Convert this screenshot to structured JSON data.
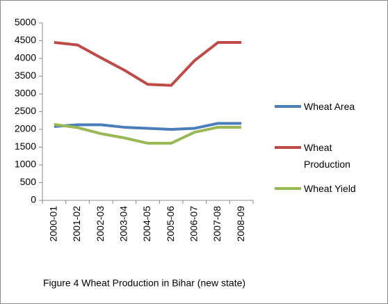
{
  "chart_data": {
    "type": "line",
    "caption": "Figure 4  Wheat Production in Bihar (new state)",
    "categories": [
      "2000-01",
      "2001-02",
      "2002-03",
      "2003-04",
      "2004-05",
      "2005-06",
      "2006-07",
      "2007-08",
      "2008-09"
    ],
    "series": [
      {
        "name": "Wheat Area",
        "color": "#4a7ebb",
        "values": [
          2080,
          2130,
          2130,
          2060,
          2030,
          2000,
          2030,
          2170,
          2170
        ]
      },
      {
        "name": "Wheat Production",
        "color": "#be4b48",
        "values": [
          4450,
          4380,
          4020,
          3670,
          3270,
          3240,
          3940,
          4450,
          4450
        ]
      },
      {
        "name": "Wheat Yield",
        "color": "#98b954",
        "values": [
          2140,
          2050,
          1880,
          1760,
          1610,
          1610,
          1920,
          2060,
          2060
        ]
      }
    ],
    "ylim": [
      0,
      5000
    ],
    "yticks": [
      0,
      500,
      1000,
      1500,
      2000,
      2500,
      3000,
      3500,
      4000,
      4500,
      5000
    ],
    "legend": "right"
  }
}
